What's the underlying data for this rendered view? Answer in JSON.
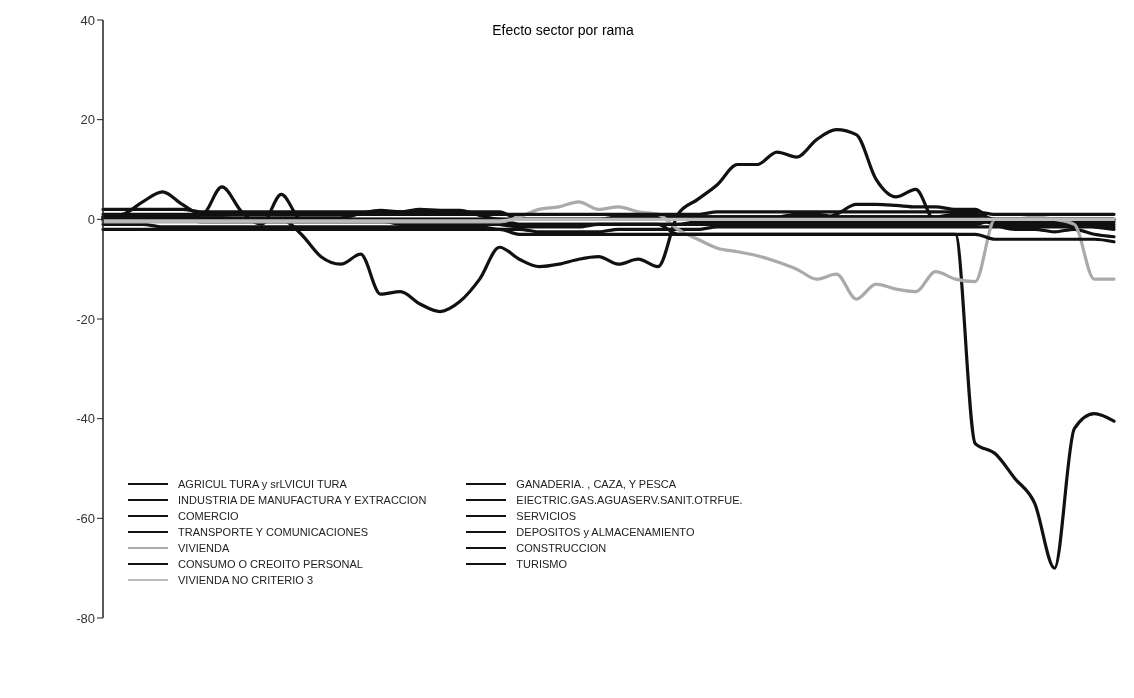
{
  "chart_data": {
    "type": "line",
    "title": "Efecto sector por rama",
    "categories": [
      null,
      null,
      null,
      null,
      null,
      null,
      null,
      null,
      null,
      null,
      null,
      null,
      null,
      null,
      null,
      null,
      null,
      null,
      null,
      null,
      null,
      null,
      null,
      null,
      null,
      null,
      null,
      null,
      null,
      null,
      null,
      null,
      null,
      null,
      null,
      null,
      null,
      null,
      null,
      null,
      null,
      null,
      null,
      null,
      null,
      null,
      null,
      null,
      null,
      null,
      null,
      null
    ],
    "ylim": [
      -80,
      40
    ],
    "yticks": [
      -80,
      -60,
      -40,
      -20,
      0,
      20,
      40
    ],
    "grid": false,
    "legend": "bottom left",
    "marker": "none",
    "line_style": "solid",
    "series": [
      {
        "name": "AGRICUL TURA y srLVICUI TURA",
        "color": "#111111",
        "values": [
          0.5,
          1,
          3.5,
          5.5,
          3,
          1,
          6.5,
          1.5,
          -1,
          5,
          0,
          0,
          0,
          0,
          0,
          0,
          0,
          0,
          0,
          0,
          0,
          0,
          0,
          0,
          0,
          0,
          0,
          0,
          0,
          0,
          0,
          0,
          0,
          0,
          0,
          0,
          0,
          0,
          0,
          0,
          0,
          0,
          0,
          0,
          0,
          0,
          0,
          0,
          0,
          0,
          0,
          0
        ]
      },
      {
        "name": "GANADERIA. , CAZA, Y PESCA",
        "color": "#111111",
        "values": [
          0,
          0,
          0,
          0,
          0,
          -0.5,
          -0.5,
          -0.5,
          -0.5,
          -0.5,
          -0.5,
          -0.5,
          -0.5,
          -0.5,
          -0.5,
          -0.5,
          -0.5,
          -0.5,
          -0.5,
          -0.5,
          -1,
          -1.5,
          -1.5,
          -1.5,
          -1.5,
          -1,
          -1,
          -1,
          -1,
          -1,
          -0.5,
          -0.5,
          -0.5,
          -0.5,
          -0.5,
          -0.5,
          -0.5,
          -0.5,
          -0.5,
          -0.5,
          -0.5,
          -0.5,
          -0.5,
          -0.5,
          -0.5,
          -0.5,
          -0.5,
          -0.5,
          -0.5,
          -0.5,
          -0.5,
          -0.5
        ]
      },
      {
        "name": "INDUSTRIA DE MANUFACTURA Y EXTRACCION",
        "color": "#111111",
        "values": [
          0.3,
          0.3,
          0.3,
          0.3,
          0.3,
          0.3,
          0.3,
          0.3,
          0.3,
          0.3,
          0.3,
          0.3,
          0.3,
          1.2,
          1.8,
          1.5,
          2,
          1.8,
          1.8,
          0.8,
          0,
          0,
          0,
          0,
          0,
          0,
          0,
          0,
          0,
          0,
          0,
          0,
          0,
          0,
          0,
          0,
          0,
          1,
          3,
          3,
          2.8,
          2.5,
          2.5,
          2,
          2,
          -1,
          -2,
          -2,
          -2.5,
          -2,
          -3,
          -3.5
        ]
      },
      {
        "name": "EIECTRIC.GAS.AGUASERV.SANIT.OTRFUE.",
        "color": "#111111",
        "values": [
          0.5,
          0.5,
          0.5,
          0.5,
          0.5,
          0.3,
          0.3,
          0,
          0,
          0,
          -3,
          -7.5,
          -9,
          -7,
          -15,
          -14.5,
          -17,
          -18.5,
          -16.5,
          -12,
          -5.6,
          -8,
          -9.5,
          -9,
          -8,
          -7.5,
          -9,
          -8,
          -9.5,
          1,
          4,
          7,
          11,
          11,
          13.5,
          12.5,
          16,
          18,
          17,
          8,
          4.5,
          6,
          -0.5,
          -0.5,
          -0.5,
          -0.5,
          -1,
          -1,
          -1,
          -1,
          -1,
          -1
        ]
      },
      {
        "name": "COMERCIO",
        "color": "#111111",
        "values": [
          2,
          2,
          2,
          2,
          2,
          1.5,
          1.5,
          1.5,
          1.5,
          1.5,
          1.5,
          1.5,
          1.5,
          1.5,
          1.5,
          1.5,
          1.5,
          1.5,
          1.5,
          1.5,
          1.5,
          0,
          0,
          0,
          0,
          0,
          0,
          0,
          0,
          0,
          0.5,
          0.5,
          0.5,
          0.5,
          0.5,
          1,
          1,
          0.5,
          0.5,
          0.5,
          0.5,
          0.5,
          0.5,
          1,
          1,
          0,
          0,
          0,
          0,
          0,
          0,
          0
        ]
      },
      {
        "name": "SERVICIOS",
        "color": "#111111",
        "values": [
          -0.3,
          -0.3,
          -0.3,
          -0.3,
          -0.3,
          -0.3,
          -0.3,
          -0.3,
          -0.3,
          -0.3,
          -0.3,
          -0.3,
          -0.3,
          -0.3,
          -0.3,
          -1,
          -1,
          -1,
          -1,
          -1,
          -1,
          -1,
          -1,
          -1,
          -1,
          -1,
          -1,
          -1,
          -1,
          -3,
          -3,
          -3,
          -3,
          -3,
          -3,
          -3,
          -3,
          -3,
          -3,
          -3,
          -3,
          -3,
          -3,
          -3,
          -45,
          -47,
          -52,
          -57,
          -70,
          -42,
          -39,
          -40.5
        ]
      },
      {
        "name": "TRANSPORTE Y COMUNICACIONES",
        "color": "#111111",
        "values": [
          0,
          0,
          0,
          0,
          0,
          0,
          0,
          0,
          0,
          0,
          0,
          0,
          0,
          0,
          0,
          0,
          0,
          0,
          0,
          0,
          0,
          0,
          0,
          0,
          0,
          0,
          0.5,
          0.5,
          0.5,
          0.5,
          0.5,
          0.5,
          0.5,
          0.5,
          0.5,
          0.5,
          0.5,
          0.5,
          0.5,
          0.5,
          0.5,
          0.5,
          0.5,
          0.5,
          0.5,
          -1,
          -1,
          -1,
          -1,
          -1,
          -1.5,
          -2
        ]
      },
      {
        "name": "DEPOSITOS y ALMACENAMIENTO",
        "color": "#111111",
        "values": [
          -1,
          -1,
          -1,
          -1.5,
          -1.5,
          -1.5,
          -1.5,
          -1.5,
          -1.5,
          -1.5,
          -1.5,
          -1.5,
          -1.5,
          -1.5,
          -1.5,
          -1.5,
          -1.5,
          -1.5,
          -1.5,
          -1.5,
          -2,
          -2,
          -2.5,
          -2.5,
          -2.5,
          -2.5,
          -2,
          -2,
          -2,
          -2,
          -2,
          -1.5,
          -1.5,
          -1.5,
          -1.5,
          -1.5,
          -1.5,
          -1.5,
          -1.5,
          -1.5,
          -1.5,
          -1.5,
          -1.5,
          -1.5,
          -1.5,
          -1.5,
          -1.5,
          -1.5,
          -1.5,
          -1.5,
          -1.5,
          -1.5
        ]
      },
      {
        "name": "VIVIENDA",
        "color": "#aaaaaa",
        "values": [
          -0.5,
          -0.5,
          -0.5,
          -0.5,
          -0.5,
          -0.5,
          -0.5,
          -0.5,
          -0.5,
          -0.5,
          -0.5,
          -0.5,
          -0.5,
          -0.5,
          -0.5,
          -0.5,
          -0.5,
          -0.5,
          -0.5,
          -0.5,
          -0.5,
          0.5,
          2,
          2.5,
          3.5,
          2,
          2.5,
          1.5,
          1,
          -2,
          -4,
          -5.8,
          -6.5,
          -7.3,
          -8.5,
          -10,
          -12,
          -11,
          -16,
          -13,
          -14,
          -14.5,
          -10.5,
          -12,
          -12.5,
          0,
          0,
          0.5,
          0,
          -1,
          -12,
          -12
        ]
      },
      {
        "name": "CONSTRUCCION",
        "color": "#111111",
        "values": [
          0,
          0,
          0,
          0,
          0,
          0,
          0,
          0,
          0,
          0,
          0,
          0,
          0,
          0,
          0,
          0,
          0,
          0,
          0,
          0,
          0,
          -1,
          -1,
          -1,
          -1,
          -1,
          -1,
          -1,
          -1,
          -1,
          -1,
          -1,
          -1,
          -1,
          -1,
          -1,
          -1,
          -1,
          -1,
          -1,
          -1,
          -1,
          -1,
          -1,
          -1,
          0,
          0,
          0,
          0,
          0,
          0,
          0
        ]
      },
      {
        "name": "CONSUMO O CREOITO PERSONAL",
        "color": "#111111",
        "values": [
          1,
          1,
          1,
          1,
          1,
          1,
          1,
          1,
          1,
          1,
          1,
          1,
          1,
          1,
          1,
          1,
          1,
          1,
          1,
          1,
          1,
          1,
          1,
          1,
          1,
          1,
          1,
          1,
          1,
          1,
          1,
          1.5,
          1.5,
          1.5,
          1.5,
          1.5,
          1.5,
          1.5,
          1.5,
          1.5,
          1.5,
          1.5,
          1.5,
          1.5,
          1.5,
          1,
          1,
          1,
          1,
          1,
          1,
          1
        ]
      },
      {
        "name": "TURISMO",
        "color": "#111111",
        "values": [
          -2,
          -2,
          -2,
          -2,
          -2,
          -2,
          -2,
          -2,
          -2,
          -2,
          -2,
          -2,
          -2,
          -2,
          -2,
          -2,
          -2,
          -2,
          -2,
          -2,
          -2,
          -3,
          -3,
          -3,
          -3,
          -3,
          -3,
          -3,
          -3,
          -3,
          -3,
          -3,
          -3,
          -3,
          -3,
          -3,
          -3,
          -3,
          -3,
          -3,
          -3,
          -3,
          -3,
          -3,
          -3,
          -4,
          -4,
          -4,
          -4,
          -4,
          -4,
          -4.5
        ]
      },
      {
        "name": "VIVIENDA NO CRITERIO 3",
        "color": "#bbbbbb",
        "values": [
          -0.3,
          -0.3,
          -0.3,
          -0.3,
          -0.3,
          -0.3,
          -0.3,
          -0.3,
          -0.3,
          -0.3,
          -0.3,
          -0.3,
          -0.3,
          -0.3,
          -0.3,
          -0.3,
          -0.3,
          -0.3,
          -0.3,
          -0.3,
          -0.3,
          0,
          0,
          0,
          0,
          0,
          0,
          0,
          0,
          0,
          0,
          0,
          0,
          0,
          0,
          0,
          0,
          0,
          0,
          0,
          0,
          0,
          0,
          0,
          0,
          0,
          0,
          0,
          0,
          0,
          0,
          0
        ]
      }
    ]
  }
}
